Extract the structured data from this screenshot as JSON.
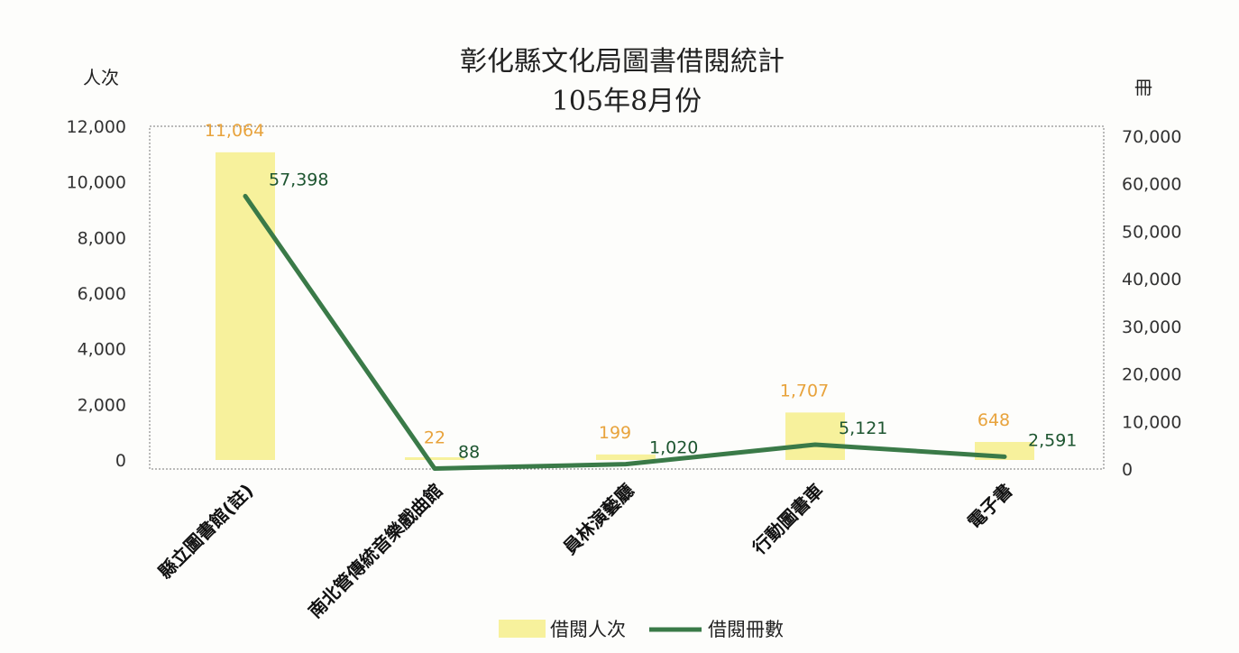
{
  "chart_data": {
    "type": "bar+line",
    "title": [
      "彰化縣文化局圖書借閱統計",
      "105年8月份"
    ],
    "y_left_unit": "人次",
    "y_right_unit": "冊",
    "y_left_lim": [
      0,
      12000
    ],
    "y_right_lim": [
      0,
      70000
    ],
    "y_left_ticks": [
      "12,000",
      "10,000",
      "8,000",
      "6,000",
      "4,000",
      "2,000",
      "0"
    ],
    "y_right_ticks": [
      "70,000",
      "60,000",
      "50,000",
      "40,000",
      "30,000",
      "20,000",
      "10,000",
      "0"
    ],
    "categories": [
      "縣立圖書館(註)",
      "南北管傳統音樂戲曲館",
      "員林演藝廳",
      "行動圖書車",
      "電子書"
    ],
    "series": [
      {
        "name": "借閱人次",
        "type": "bar",
        "axis": "left",
        "values": [
          11064,
          22,
          199,
          1707,
          648
        ],
        "labels": [
          "11,064",
          "22",
          "199",
          "1,707",
          "648"
        ],
        "color": "#f7f19c",
        "label_color": "#e8a33c"
      },
      {
        "name": "借閱冊數",
        "type": "line",
        "axis": "right",
        "values": [
          57398,
          88,
          1020,
          5121,
          2591
        ],
        "labels": [
          "57,398",
          "88",
          "1,020",
          "5,121",
          "2,591"
        ],
        "color": "#3a7a48",
        "label_color": "#1d5530"
      }
    ],
    "legend_position": "bottom",
    "grid": false
  }
}
